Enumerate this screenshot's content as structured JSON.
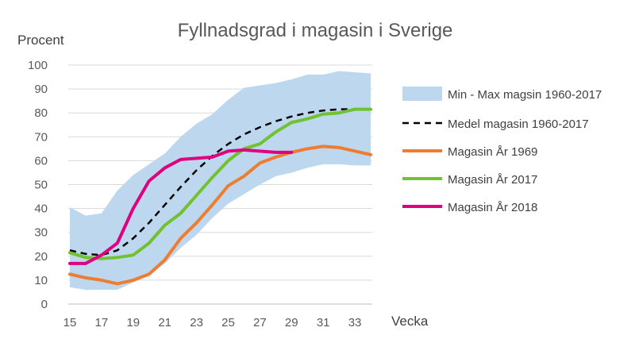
{
  "chart_data": {
    "type": "line",
    "title": "Fyllnadsgrad i magasin i Sverige",
    "ylabel": "Procent",
    "xlabel": "Vecka",
    "ylim": [
      0,
      100
    ],
    "xlim": [
      15,
      34
    ],
    "y_ticks": [
      0,
      10,
      20,
      30,
      40,
      50,
      60,
      70,
      80,
      90,
      100
    ],
    "x_ticks": [
      15,
      17,
      19,
      21,
      23,
      25,
      27,
      29,
      31,
      33
    ],
    "grid": "horizontal",
    "legend_position": "right",
    "band": {
      "name": "Min - Max magsin 1960-2017",
      "color": "#bdd7ee",
      "x": [
        15,
        16,
        17,
        18,
        19,
        20,
        21,
        22,
        23,
        24,
        25,
        26,
        27,
        28,
        29,
        30,
        31,
        32,
        33,
        34
      ],
      "max": [
        40.5,
        37,
        38,
        47.5,
        54,
        58.5,
        63,
        70,
        75.5,
        79.5,
        85.5,
        90.5,
        91.5,
        92.5,
        94,
        96,
        96,
        97.5,
        97,
        96.5
      ],
      "min": [
        7,
        6,
        6,
        6,
        9,
        12,
        17,
        23.5,
        29,
        36,
        42,
        46,
        50,
        53.5,
        55,
        57,
        58.5,
        58.5,
        58,
        58
      ]
    },
    "series": [
      {
        "name": "Medel magasin 1960-2017",
        "color": "#000000",
        "dashed": true,
        "x": [
          15,
          16,
          17,
          18,
          19,
          20,
          21,
          22,
          23,
          24,
          25,
          26,
          27,
          28,
          29,
          30,
          31,
          32,
          33
        ],
        "values": [
          22.5,
          21,
          20.5,
          22.5,
          27.5,
          34,
          41.5,
          49,
          56,
          62,
          67,
          71,
          74,
          76.5,
          78.5,
          80,
          81,
          81.5,
          81.5
        ]
      },
      {
        "name": "Magasin  År 1969",
        "color": "#ed7d31",
        "dashed": false,
        "x": [
          15,
          16,
          17,
          18,
          19,
          20,
          21,
          22,
          23,
          24,
          25,
          26,
          27,
          28,
          29,
          30,
          31,
          32,
          33,
          34
        ],
        "values": [
          12.5,
          11,
          10,
          8.5,
          10,
          12.5,
          18.5,
          27.5,
          34,
          41.5,
          49.5,
          53.5,
          59,
          61.5,
          63.5,
          65,
          66,
          65.5,
          64,
          62.5
        ]
      },
      {
        "name": "Magasin  År 2017",
        "color": "#70c230",
        "dashed": false,
        "x": [
          15,
          16,
          17,
          18,
          19,
          20,
          21,
          22,
          23,
          24,
          25,
          26,
          27,
          28,
          29,
          30,
          31,
          32,
          33,
          34
        ],
        "values": [
          21.5,
          19.5,
          19,
          19.5,
          20.5,
          25.5,
          33,
          38,
          45.5,
          53,
          60,
          65,
          67,
          72,
          76,
          77.5,
          79.5,
          80,
          81.5,
          81.5
        ]
      },
      {
        "name": "Magasin  År 2018",
        "color": "#e0007f",
        "dashed": false,
        "x": [
          15,
          16,
          17,
          18,
          19,
          20,
          21,
          22,
          23,
          24,
          25,
          26,
          27,
          28,
          29
        ],
        "values": [
          17,
          17,
          20.5,
          25.5,
          40,
          51.5,
          57,
          60.5,
          61,
          61.5,
          64,
          64.5,
          64,
          63.5,
          63.5
        ]
      }
    ]
  }
}
